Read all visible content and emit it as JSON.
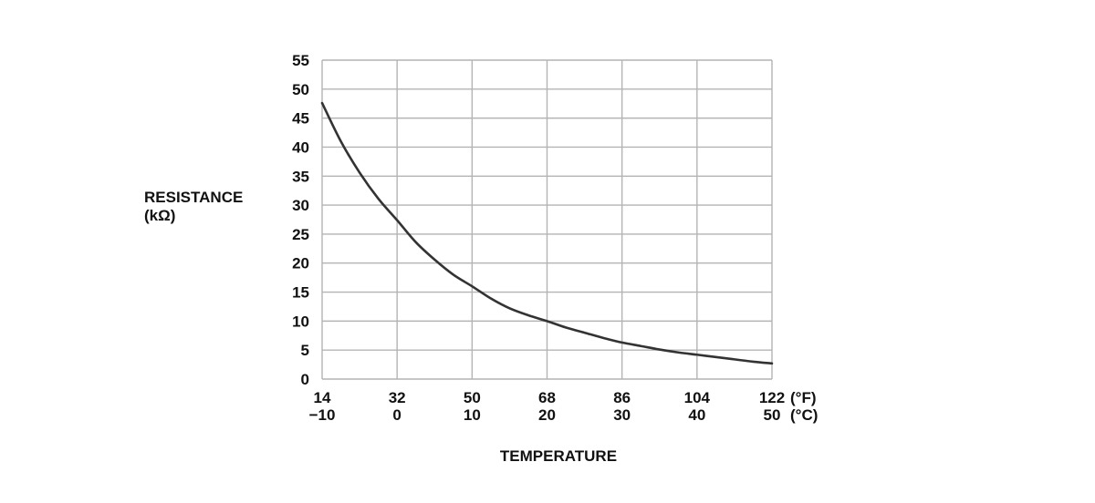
{
  "chart_data": {
    "type": "line",
    "title": "",
    "ylabel": "RESISTANCE",
    "ylabel_unit": "(kΩ)",
    "xlabel": "TEMPERATURE",
    "x_unit_f": "(°F)",
    "x_unit_c": "(°C)",
    "ylim": [
      0,
      55
    ],
    "yticks": [
      0,
      5,
      10,
      15,
      20,
      25,
      30,
      35,
      40,
      45,
      50,
      55
    ],
    "xlim_c": [
      -10,
      50
    ],
    "xticks_c": [
      -10,
      0,
      10,
      20,
      30,
      40,
      50
    ],
    "xtick_labels_c": [
      "−10",
      "0",
      "10",
      "20",
      "30",
      "40",
      "50"
    ],
    "xtick_labels_f": [
      "14",
      "32",
      "50",
      "68",
      "86",
      "104",
      "122"
    ],
    "grid": true,
    "legend": "none",
    "line_color": "#333333",
    "grid_color": "#b4b4b4",
    "series": [
      {
        "x": [
          -10,
          -7.5,
          -5,
          -2.5,
          0,
          2.5,
          5,
          7.5,
          10,
          12.5,
          15,
          17.5,
          20,
          22.5,
          25,
          27.5,
          30,
          32.5,
          35,
          37.5,
          40,
          42.5,
          45,
          47.5,
          50
        ],
        "y": [
          47.6,
          41.0,
          35.6,
          31.1,
          27.4,
          23.6,
          20.6,
          18.0,
          16.0,
          13.9,
          12.2,
          11.0,
          10.0,
          8.9,
          8.0,
          7.1,
          6.3,
          5.7,
          5.1,
          4.6,
          4.2,
          3.8,
          3.4,
          3.0,
          2.7
        ]
      }
    ]
  }
}
